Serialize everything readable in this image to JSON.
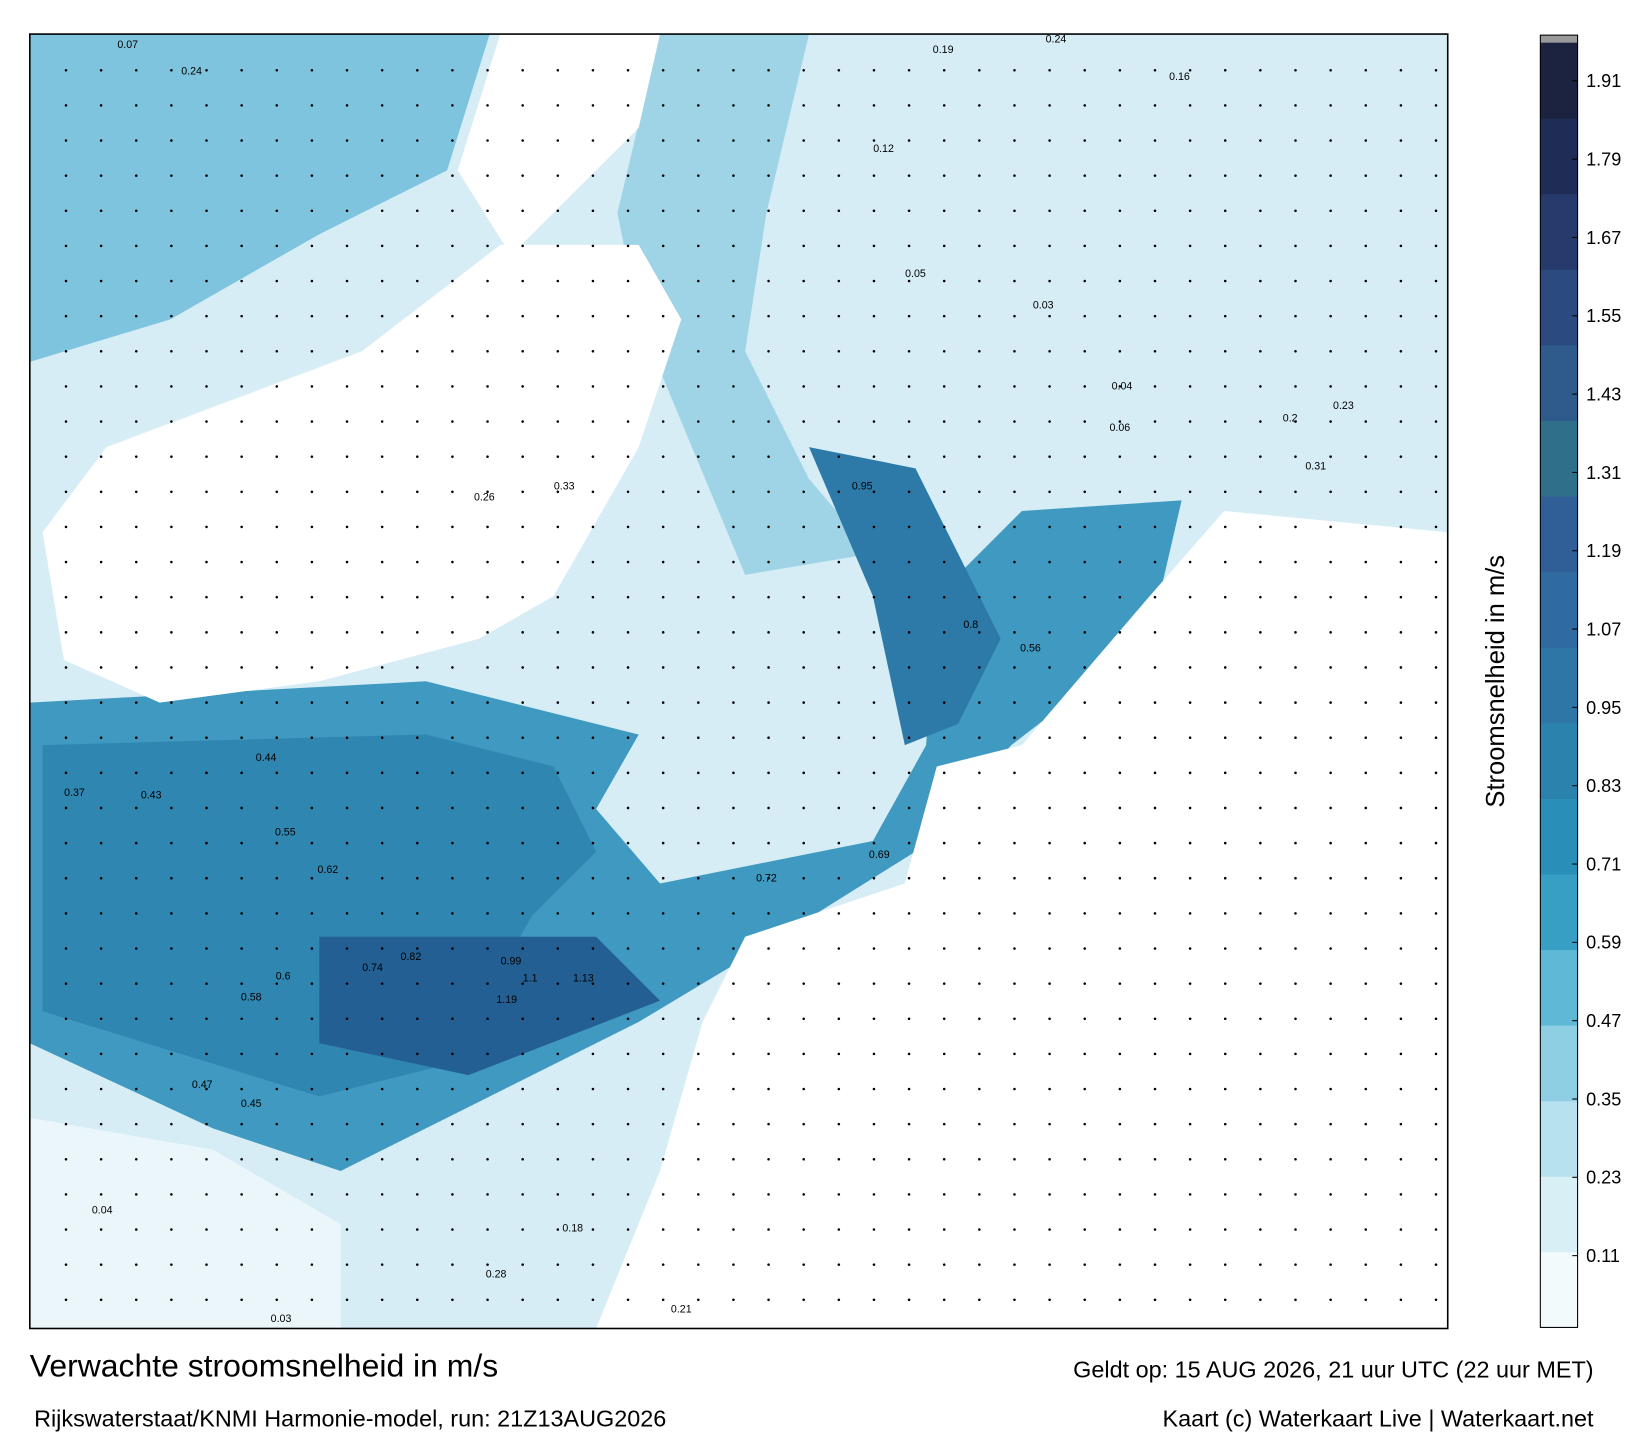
{
  "map": {
    "labels": [
      "0.07",
      "0.24",
      "0.44",
      "0.37",
      "0.43",
      "0.55",
      "0.62",
      "0.6",
      "0.74",
      "0.99",
      "1.1",
      "1.13",
      "1.19",
      "0.82",
      "0.72",
      "0.69",
      "0.95",
      "0.8",
      "0.56",
      "0.24",
      "0.19",
      "0.16",
      "0.12",
      "0.05",
      "0.04",
      "0.06",
      "0.03",
      "0.2",
      "0.23",
      "0.31",
      "0.04",
      "0.03",
      "0.21",
      "0.18",
      "0.28",
      "0.45",
      "0.47",
      "0.58",
      "0.33",
      "0.26"
    ]
  },
  "colorbar": {
    "title": "Stroomsnelheid in m/s",
    "clim": [
      0,
      1.98
    ],
    "ticks": [
      0.11,
      0.23,
      0.35,
      0.47,
      0.59,
      0.71,
      0.83,
      0.95,
      1.07,
      1.19,
      1.31,
      1.43,
      1.55,
      1.67,
      1.79,
      1.91
    ],
    "colors": [
      "#f3fafc",
      "#d9eff6",
      "#b7e1ee",
      "#8fcfe3",
      "#5fb8d5",
      "#379fc4",
      "#2a8fb8",
      "#2b82ad",
      "#2e76a6",
      "#2f6aa0",
      "#305f98",
      "#2f6f8a",
      "#2f5b8c",
      "#2b4a80",
      "#263a6c",
      "#1f2c56",
      "#1b2340"
    ]
  },
  "footer": {
    "title": "Verwachte stroomsnelheid in m/s",
    "valid": "Geldt op: 15 AUG 2026, 21 uur UTC (22 uur MET)",
    "source": "Rijkswaterstaat/KNMI Harmonie-model, run: 21Z13AUG2026",
    "credit": "Kaart (c) Waterkaart Live | Waterkaart.net"
  }
}
